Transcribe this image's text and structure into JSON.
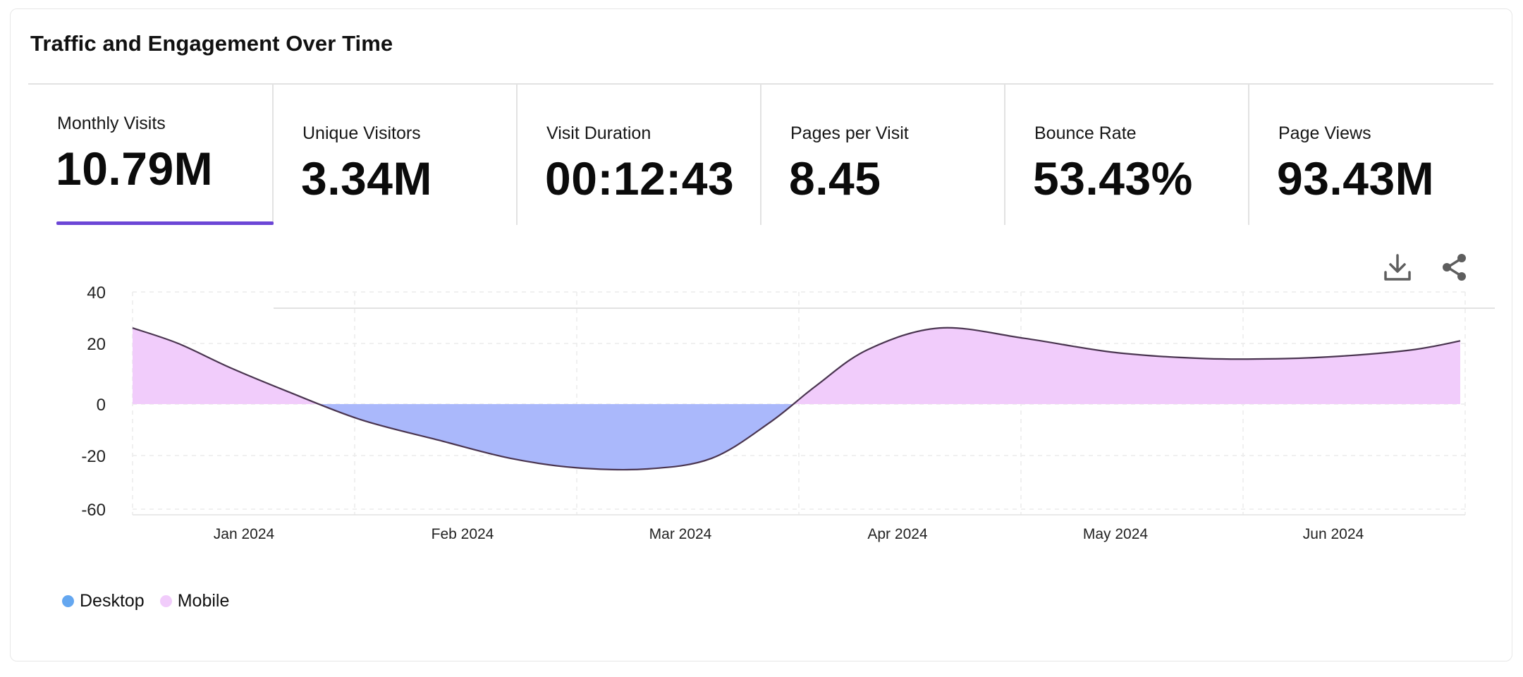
{
  "title": "Traffic and Engagement Over Time",
  "metrics": [
    {
      "label": "Monthly Visits",
      "value": "10.79M",
      "active": true
    },
    {
      "label": "Unique Visitors",
      "value": "3.34M",
      "active": false
    },
    {
      "label": "Visit Duration",
      "value": "00:12:43",
      "active": false
    },
    {
      "label": "Pages per Visit",
      "value": "8.45",
      "active": false
    },
    {
      "label": "Bounce Rate",
      "value": "53.43%",
      "active": false
    },
    {
      "label": "Page Views",
      "value": "93.43M",
      "active": false
    }
  ],
  "toolbar": {
    "download_icon": "download-icon",
    "share_icon": "share-icon"
  },
  "colors": {
    "accent": "#6c46d6",
    "desktop_fill": "#aab8fb",
    "mobile_fill": "#f1ccfb",
    "line": "#4a3550",
    "desktop_dot": "#64a7f0",
    "mobile_dot": "#f1ccfb"
  },
  "legend": [
    {
      "name": "Desktop",
      "color": "#64a7f0"
    },
    {
      "name": "Mobile",
      "color": "#f1ccfb"
    }
  ],
  "chart_data": {
    "type": "area",
    "title": "",
    "xlabel": "",
    "ylabel": "",
    "y_tick_labels": [
      "40",
      "20",
      "0",
      "-20",
      "-60"
    ],
    "x_tick_labels": [
      "Jan 2024",
      "Feb 2024",
      "Mar 2024",
      "Apr 2024",
      "May 2024",
      "Jun 2024"
    ],
    "x": [
      "2023-12-16",
      "2023-12-23",
      "2023-12-31",
      "2024-01-09",
      "2024-01-20",
      "2024-02-01",
      "2024-02-12",
      "2024-02-22",
      "2024-03-04",
      "2024-03-14",
      "2024-03-23",
      "2024-03-30",
      "2024-04-07",
      "2024-04-18",
      "2024-05-01",
      "2024-05-15",
      "2024-05-29",
      "2024-06-10",
      "2024-06-20",
      "2024-06-30",
      "2024-07-07"
    ],
    "series": [
      {
        "name": "Mobile",
        "values": [
          26,
          20,
          12,
          4,
          0,
          0,
          0,
          0,
          0,
          0,
          0,
          6,
          18,
          26,
          22,
          17,
          15,
          15,
          16,
          18,
          21
        ]
      },
      {
        "name": "Desktop",
        "values": [
          0,
          0,
          0,
          0,
          -6,
          -14,
          -22,
          -29,
          -30,
          -22,
          -7,
          0,
          0,
          0,
          0,
          0,
          0,
          0,
          0,
          0,
          0
        ]
      }
    ],
    "grid": true,
    "legend_position": "bottom-left"
  }
}
